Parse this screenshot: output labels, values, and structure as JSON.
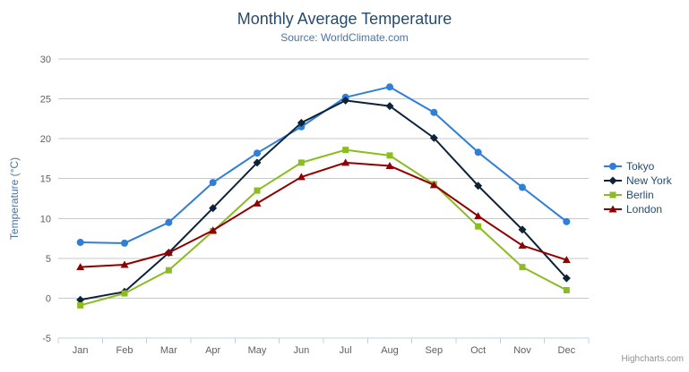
{
  "chart": {
    "title": "Monthly Average Temperature",
    "subtitle": "Source: WorldClimate.com",
    "y_axis_title": "Temperature (°C)",
    "credits": "Highcharts.com",
    "menu_icon": "hamburger-icon"
  },
  "chart_data": {
    "type": "line",
    "title": "Monthly Average Temperature",
    "subtitle": "Source: WorldClimate.com",
    "xlabel": "",
    "ylabel": "Temperature (°C)",
    "categories": [
      "Jan",
      "Feb",
      "Mar",
      "Apr",
      "May",
      "Jun",
      "Jul",
      "Aug",
      "Sep",
      "Oct",
      "Nov",
      "Dec"
    ],
    "ylim": [
      -5,
      30
    ],
    "yticks": [
      -5,
      0,
      5,
      10,
      15,
      20,
      25,
      30
    ],
    "grid": true,
    "legend_position": "right",
    "series": [
      {
        "name": "Tokyo",
        "marker": "circle",
        "color": "#2f7ed8",
        "values": [
          7.0,
          6.9,
          9.5,
          14.5,
          18.2,
          21.5,
          25.2,
          26.5,
          23.3,
          18.3,
          13.9,
          9.6
        ]
      },
      {
        "name": "New York",
        "marker": "diamond",
        "color": "#0d233a",
        "values": [
          -0.2,
          0.8,
          5.7,
          11.3,
          17.0,
          22.0,
          24.8,
          24.1,
          20.1,
          14.1,
          8.6,
          2.5
        ]
      },
      {
        "name": "Berlin",
        "marker": "square",
        "color": "#8bbc21",
        "values": [
          -0.9,
          0.6,
          3.5,
          8.4,
          13.5,
          17.0,
          18.6,
          17.9,
          14.3,
          9.0,
          3.9,
          1.0
        ]
      },
      {
        "name": "London",
        "marker": "triangle",
        "color": "#910000",
        "values": [
          3.9,
          4.2,
          5.7,
          8.5,
          11.9,
          15.2,
          17.0,
          16.6,
          14.2,
          10.3,
          6.6,
          4.8
        ]
      }
    ]
  },
  "style": {
    "background": "#ffffff",
    "title_color": "#274b6d",
    "subtitle_color": "#4d759e",
    "axis_title_color": "#4d759e",
    "tick_label_color": "#606060",
    "grid_line_color": "#c8c8c8",
    "axis_line_color": "#c0d0e0",
    "legend_text_color": "#274b6d",
    "credits_color": "#909090",
    "menu_icon_color": "#666666"
  }
}
